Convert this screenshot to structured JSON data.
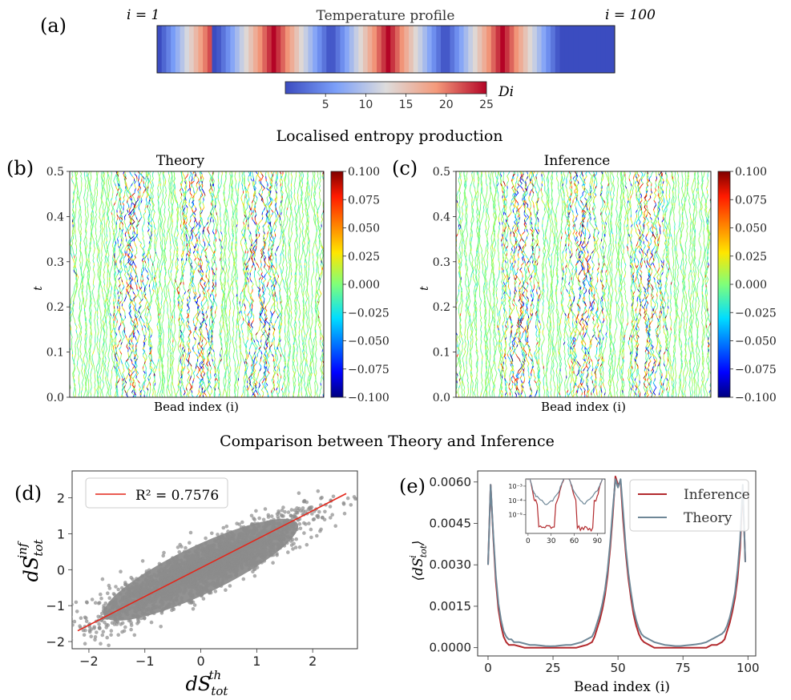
{
  "panel_a": {
    "letter": "(a)",
    "title": "Temperature profile",
    "left_label": "i = 1",
    "right_label": "i = 100",
    "colorbar_label": "Di",
    "colorbar_ticks": [
      "5",
      "10",
      "15",
      "20",
      "25"
    ],
    "cb_range": [
      0,
      25
    ],
    "cb_tick_values": [
      5,
      10,
      15,
      20,
      25
    ],
    "profile_peaks": [
      25,
      50,
      75
    ]
  },
  "section_b_title": "Localised entropy production",
  "panel_b": {
    "letter": "(b)",
    "title": "Theory",
    "ylabel": "t",
    "xlabel": "Bead index (i)",
    "yticks": [
      "0.0",
      "0.1",
      "0.2",
      "0.3",
      "0.4",
      "0.5"
    ],
    "cbar_ticks": [
      "0.100",
      "0.075",
      "0.050",
      "0.025",
      "0.000",
      "−0.025",
      "−0.050",
      "−0.075",
      "−0.100"
    ]
  },
  "panel_c": {
    "letter": "(c)",
    "title": "Inference",
    "ylabel": "t",
    "xlabel": "Bead index (i)",
    "yticks": [
      "0.0",
      "0.1",
      "0.2",
      "0.3",
      "0.4",
      "0.5"
    ],
    "cbar_ticks": [
      "0.100",
      "0.075",
      "0.050",
      "0.025",
      "0.000",
      "−0.025",
      "−0.050",
      "−0.075",
      "−0.100"
    ]
  },
  "section_d_title": "Comparison between Theory and Inference",
  "colors": {
    "scatter": "#8c8c8c",
    "fit": "#e4261a",
    "inference": "#b22a2e",
    "theory": "#6e8797",
    "heat_bg": "#7fff6a"
  },
  "chart_data": [
    {
      "id": "d",
      "letter": "(d)",
      "type": "scatter",
      "xlabel": "dS_tot^th",
      "ylabel": "dS_tot^inf",
      "xlim": [
        -2.3,
        2.8
      ],
      "ylim": [
        -2.2,
        2.75
      ],
      "xticks": [
        -2,
        -1,
        0,
        1,
        2
      ],
      "yticks": [
        -2,
        -1,
        0,
        1,
        2
      ],
      "xtick_labels": [
        "−2",
        "−1",
        "0",
        "1",
        "2"
      ],
      "ytick_labels": [
        "−2",
        "−1",
        "0",
        "1",
        "2"
      ],
      "fit": {
        "x": [
          -2.2,
          2.6
        ],
        "y": [
          -1.7,
          2.12
        ],
        "label": "R² = 0.7576"
      },
      "cloud": {
        "center": [
          0,
          0
        ],
        "major_axis_end": [
          1.8,
          1.4
        ],
        "minor_halfwidth": 0.55
      }
    },
    {
      "id": "e",
      "letter": "(e)",
      "type": "line",
      "xlabel": "Bead index (i)",
      "ylabel": "⟨dS_tot^i⟩",
      "xlim": [
        -4,
        103
      ],
      "ylim": [
        -0.0003,
        0.0064
      ],
      "xticks": [
        0,
        25,
        50,
        75,
        100
      ],
      "yticks": [
        0.0,
        0.0015,
        0.003,
        0.0045,
        0.006
      ],
      "xtick_labels": [
        "0",
        "25",
        "50",
        "75",
        "100"
      ],
      "ytick_labels": [
        "0.0000",
        "0.0015",
        "0.0030",
        "0.0045",
        "0.0060"
      ],
      "series": [
        {
          "name": "Inference",
          "x": [
            0,
            1,
            2,
            3,
            4,
            5,
            6,
            7,
            8,
            9,
            10,
            12,
            14,
            16,
            18,
            20,
            22,
            24,
            26,
            28,
            30,
            32,
            34,
            36,
            38,
            40,
            41,
            42,
            43,
            44,
            45,
            46,
            47,
            48,
            49,
            50,
            51,
            52,
            53,
            54,
            55,
            56,
            57,
            58,
            59,
            60,
            62,
            64,
            66,
            68,
            70,
            72,
            74,
            76,
            78,
            80,
            82,
            84,
            86,
            88,
            90,
            91,
            92,
            93,
            94,
            95,
            96,
            97,
            98,
            99
          ],
          "y": [
            0.003,
            0.0059,
            0.004,
            0.0024,
            0.0014,
            0.0008,
            0.0004,
            0.0002,
            0.0001,
            0.0001,
            0.0001,
            5e-05,
            0.0,
            0.0,
            0.0,
            0.0,
            0.0,
            0.0,
            0.0,
            0.0,
            0.0,
            0.0,
            0.0,
            5e-05,
            0.0001,
            0.0002,
            0.0004,
            0.0007,
            0.001,
            0.0014,
            0.0019,
            0.0026,
            0.0036,
            0.0048,
            0.0062,
            0.0059,
            0.006,
            0.0046,
            0.0034,
            0.0025,
            0.0018,
            0.0012,
            0.0008,
            0.0005,
            0.0003,
            0.0002,
            0.0001,
            0.0,
            0.0,
            0.0,
            0.0,
            0.0,
            0.0,
            0.0,
            0.0,
            0.0,
            0.0,
            0.0,
            0.0001,
            0.0001,
            0.0002,
            0.0003,
            0.0006,
            0.0009,
            0.0013,
            0.0018,
            0.0025,
            0.0036,
            0.0058,
            0.0031
          ]
        },
        {
          "name": "Theory",
          "x": [
            0,
            1,
            2,
            3,
            4,
            5,
            6,
            7,
            8,
            9,
            10,
            12,
            14,
            16,
            18,
            20,
            22,
            24,
            26,
            28,
            30,
            32,
            34,
            36,
            38,
            40,
            41,
            42,
            43,
            44,
            45,
            46,
            47,
            48,
            49,
            50,
            51,
            52,
            53,
            54,
            55,
            56,
            57,
            58,
            59,
            60,
            62,
            64,
            66,
            68,
            70,
            72,
            74,
            76,
            78,
            80,
            82,
            84,
            86,
            88,
            90,
            91,
            92,
            93,
            94,
            95,
            96,
            97,
            98,
            99
          ],
          "y": [
            0.003,
            0.0059,
            0.0041,
            0.0026,
            0.0016,
            0.001,
            0.0006,
            0.0004,
            0.0003,
            0.0003,
            0.0002,
            0.0002,
            0.00015,
            0.0001,
            0.0001,
            8e-05,
            6e-05,
            5e-05,
            6e-05,
            8e-05,
            0.0001,
            0.0001,
            0.00015,
            0.0002,
            0.0003,
            0.0004,
            0.0006,
            0.0009,
            0.0012,
            0.0016,
            0.0021,
            0.0028,
            0.0038,
            0.005,
            0.0061,
            0.0058,
            0.0061,
            0.0049,
            0.0036,
            0.0027,
            0.002,
            0.0014,
            0.001,
            0.0007,
            0.0005,
            0.0004,
            0.0003,
            0.0002,
            0.00015,
            0.0001,
            8e-05,
            6e-05,
            6e-05,
            8e-05,
            0.0001,
            0.00012,
            0.00015,
            0.0002,
            0.0003,
            0.0004,
            0.0005,
            0.0006,
            0.0008,
            0.0011,
            0.0015,
            0.002,
            0.0028,
            0.0039,
            0.0059,
            0.0031
          ]
        }
      ],
      "inset": {
        "xticks": [
          0,
          30,
          60,
          90
        ],
        "xtick_labels": [
          "0",
          "30",
          "60",
          "90"
        ],
        "ytick_labels": [
          "10⁻³",
          "10⁻⁴",
          "10⁻⁵"
        ],
        "xlim": [
          -3,
          100
        ],
        "ylog": [
          -6.3,
          -2.5
        ]
      }
    }
  ]
}
